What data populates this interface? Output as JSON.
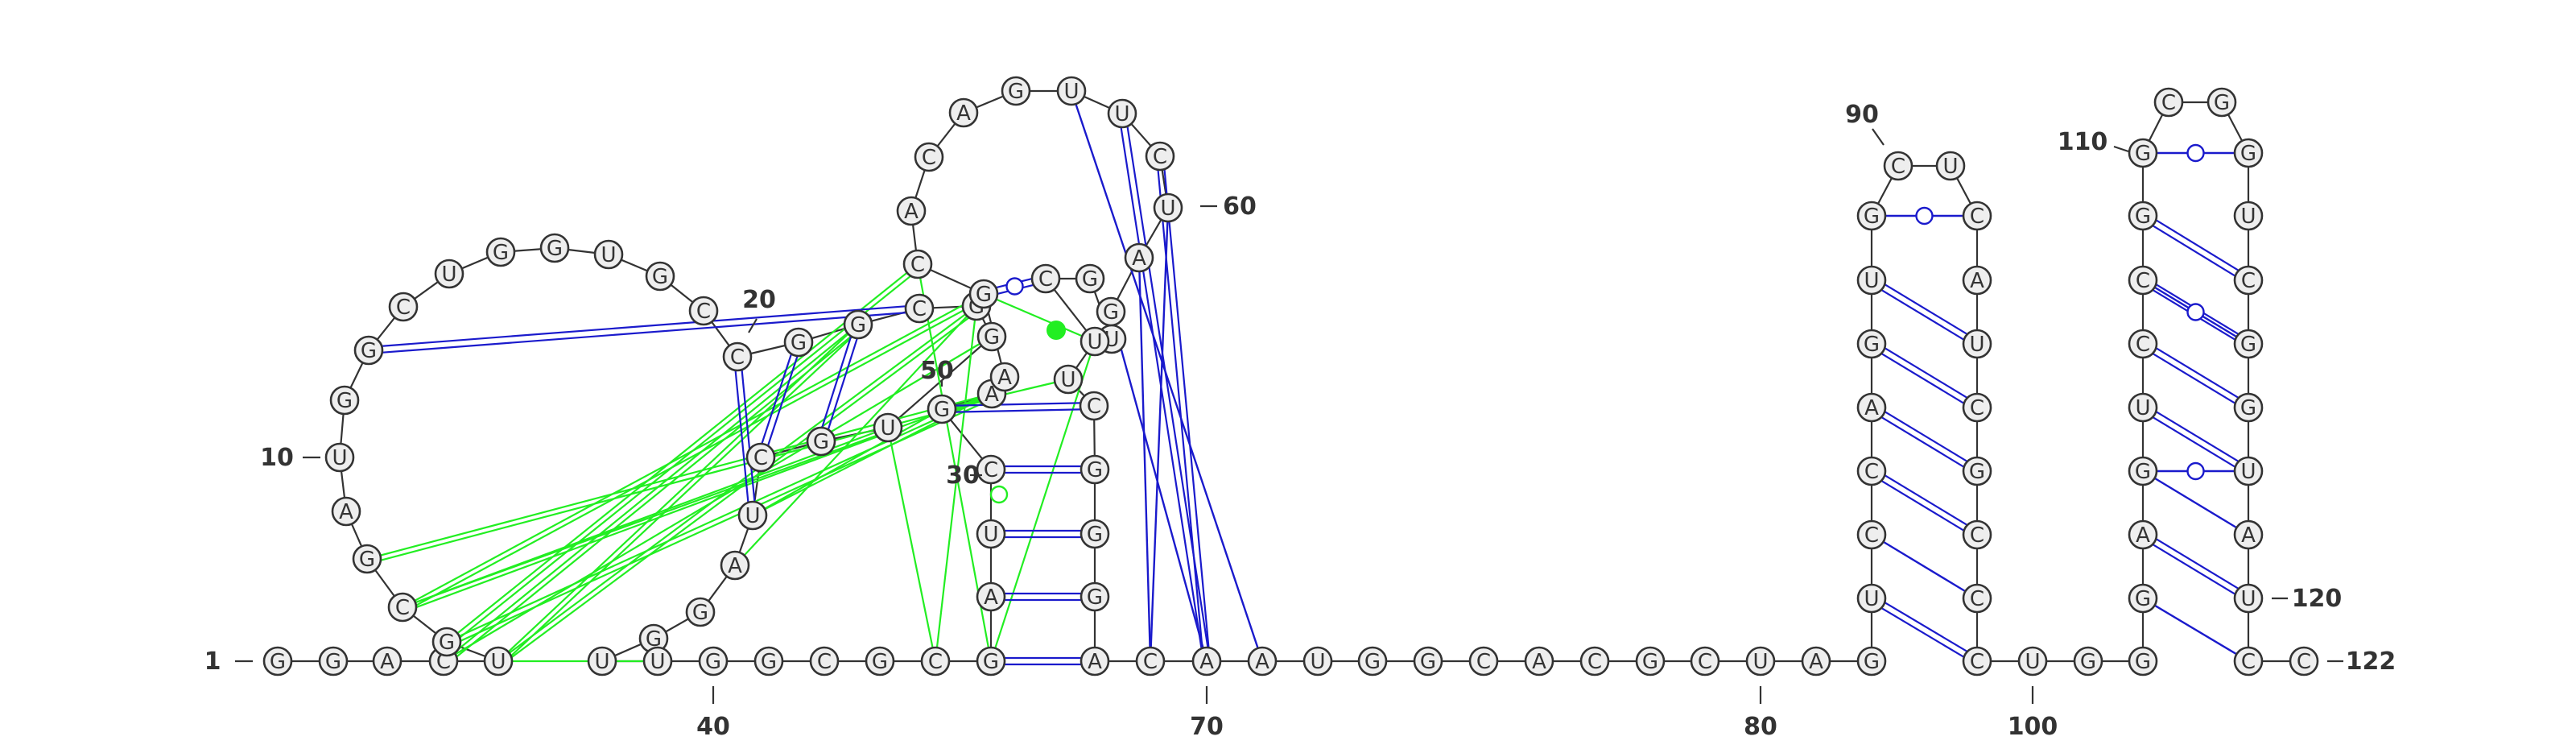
{
  "diagram": {
    "sequence": "GGACUGCGAUGGCUGGUGCCGGCGGUGCUAGGUUGGCGCGAUCGAAGCACAGUUCUAGUGCUUCGGGACAAUGGCACGCUAGUCCAGUGCUCAUCGCCCUGGGAGUCCGGCGGUCGGUAUCC",
    "numbering": [
      {
        "n": 1,
        "text": "1"
      },
      {
        "n": 10,
        "text": "10"
      },
      {
        "n": 20,
        "text": "20"
      },
      {
        "n": 30,
        "text": "30"
      },
      {
        "n": 40,
        "text": "40"
      },
      {
        "n": 50,
        "text": "50"
      },
      {
        "n": 60,
        "text": "60"
      },
      {
        "n": 70,
        "text": "70"
      },
      {
        "n": 80,
        "text": "80"
      },
      {
        "n": 90,
        "text": "90"
      },
      {
        "n": 100,
        "text": "100"
      },
      {
        "n": 110,
        "text": "110"
      },
      {
        "n": 120,
        "text": "120"
      },
      {
        "n": 122,
        "text": "122"
      }
    ],
    "colors": {
      "backbone": "#333333",
      "nucleotide_fill": "#eeeeee",
      "canonical_pair": "#1a1acc",
      "tertiary_interaction": "#22ee22",
      "label": "#333333"
    }
  }
}
